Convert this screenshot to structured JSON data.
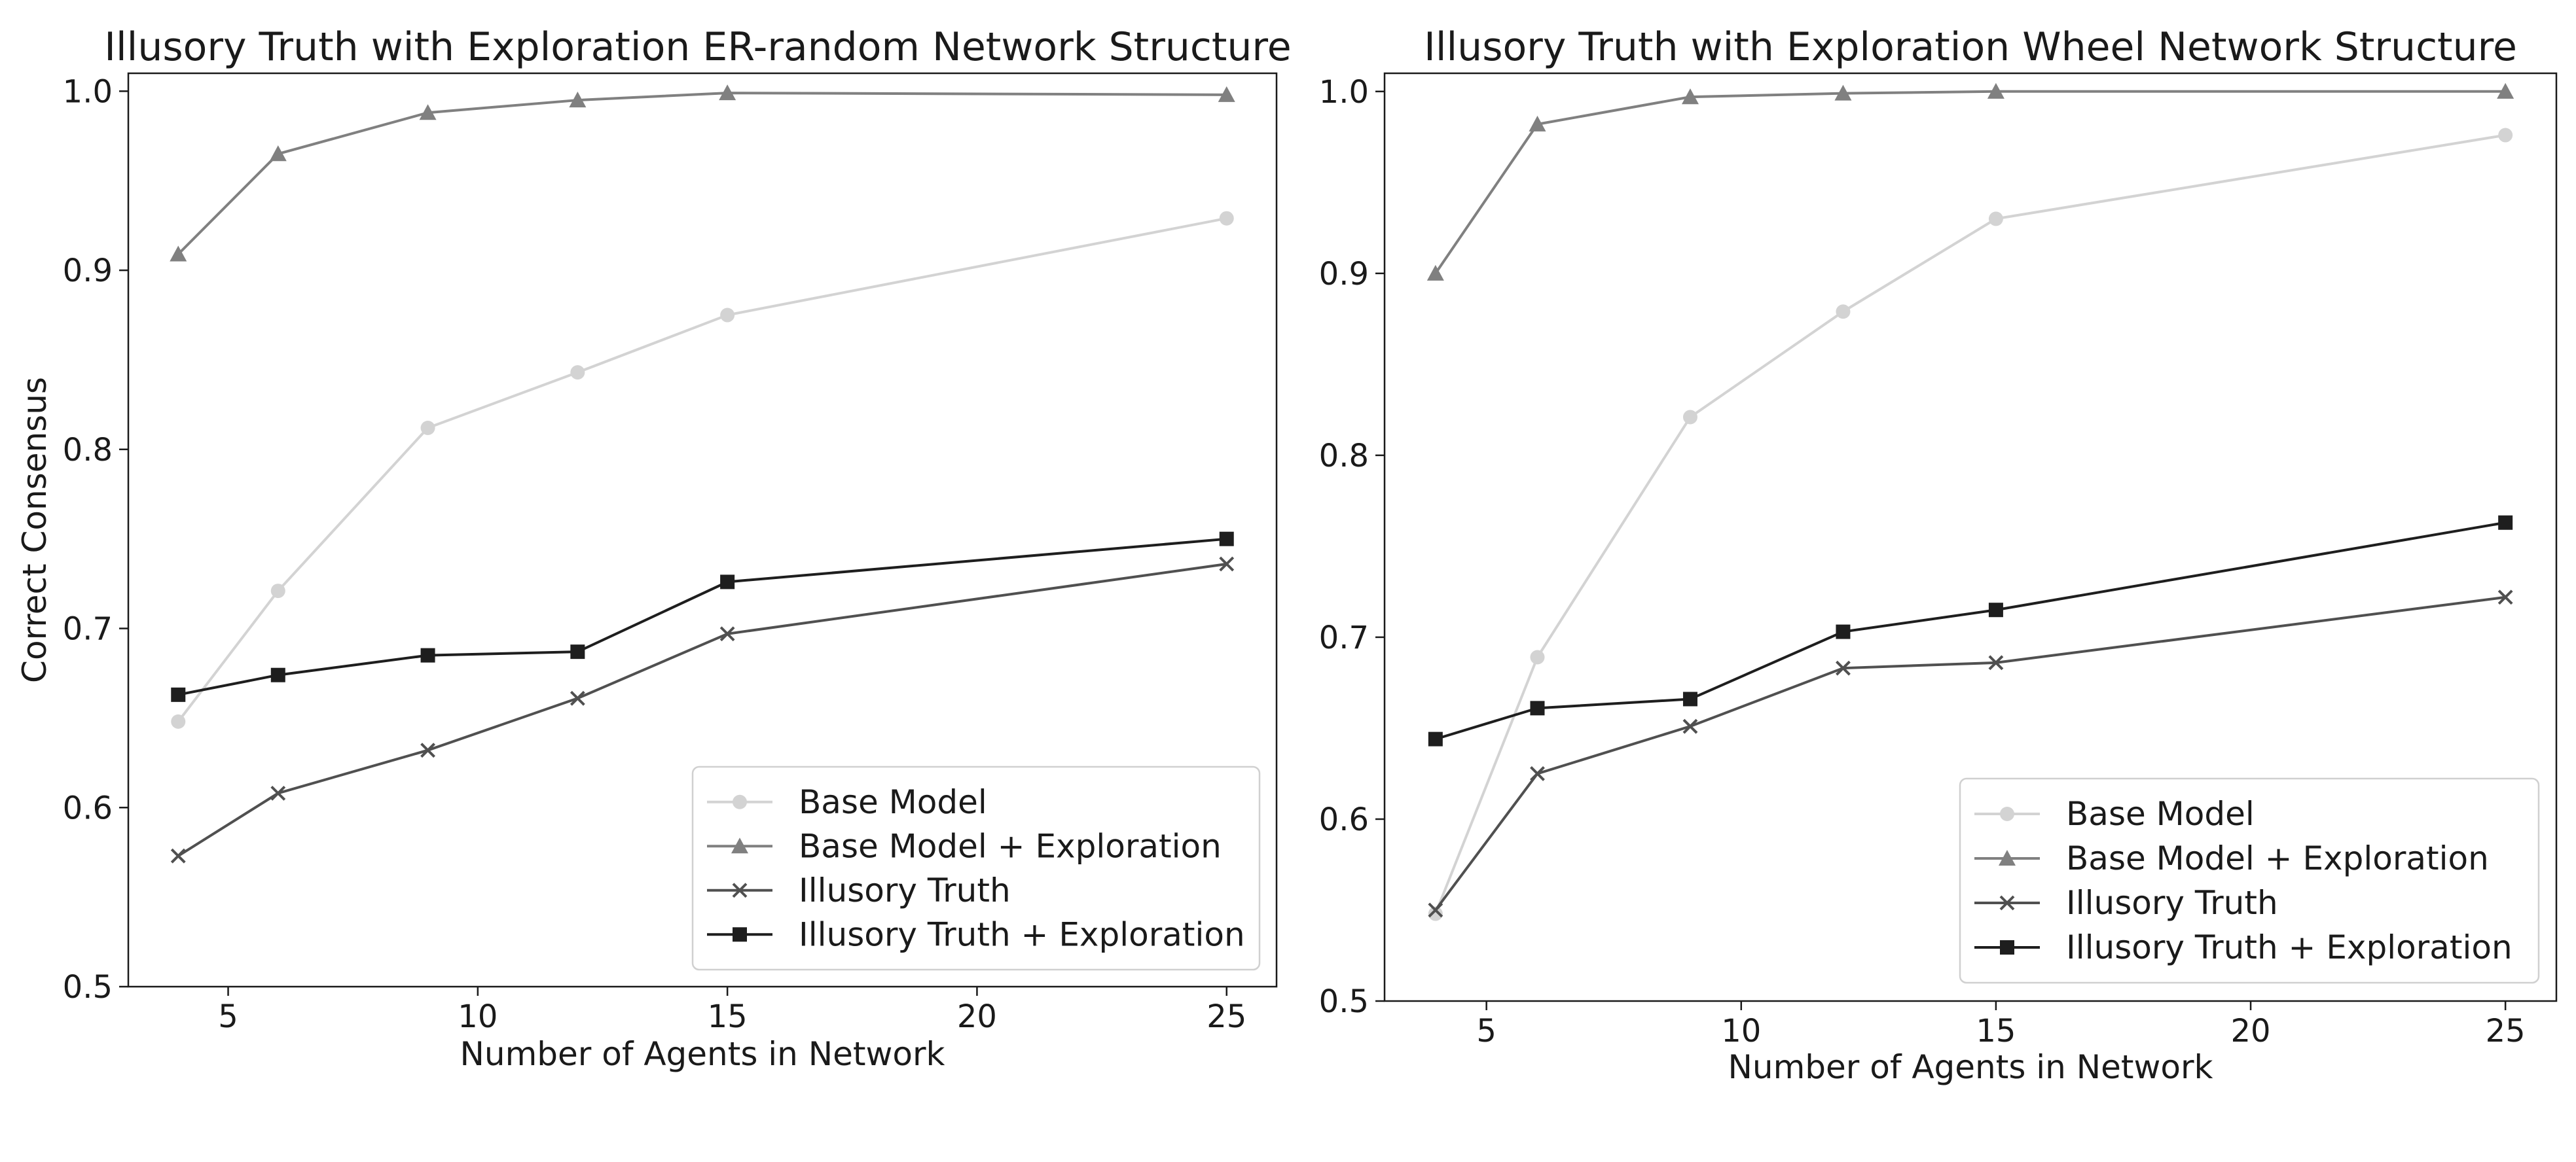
{
  "chart_data": [
    {
      "type": "line",
      "title": "Illusory Truth with Exploration ER-random Network Structure",
      "xlabel": "Number of Agents in Network",
      "ylabel": "Correct Consensus",
      "xlim": [
        3,
        26
      ],
      "ylim": [
        0.5,
        1.01
      ],
      "xticks": [
        5,
        10,
        15,
        20,
        25
      ],
      "yticks": [
        0.5,
        0.6,
        0.7,
        0.8,
        0.9,
        1.0
      ],
      "x": [
        4,
        6,
        9,
        12,
        15,
        25
      ],
      "legend_position": "lower-right",
      "grid": false,
      "series": [
        {
          "name": "Base Model",
          "marker": "circle",
          "color": "#d3d3d3",
          "values": [
            0.648,
            0.721,
            0.812,
            0.843,
            0.875,
            0.929
          ]
        },
        {
          "name": "Base Model + Exploration",
          "marker": "triangle",
          "color": "#808080",
          "values": [
            0.909,
            0.965,
            0.988,
            0.995,
            0.999,
            0.998
          ]
        },
        {
          "name": "Illusory Truth",
          "marker": "x",
          "color": "#505050",
          "values": [
            0.573,
            0.608,
            0.632,
            0.661,
            0.697,
            0.736
          ]
        },
        {
          "name": "Illusory Truth + Exploration",
          "marker": "square",
          "color": "#1e1e1e",
          "values": [
            0.663,
            0.674,
            0.685,
            0.687,
            0.726,
            0.75
          ]
        }
      ]
    },
    {
      "type": "line",
      "title": "Illusory Truth with Exploration Wheel Network Structure",
      "xlabel": "Number of Agents in Network",
      "ylabel": "",
      "xlim": [
        3,
        26
      ],
      "ylim": [
        0.5,
        1.01
      ],
      "xticks": [
        5,
        10,
        15,
        20,
        25
      ],
      "yticks": [
        0.5,
        0.6,
        0.7,
        0.8,
        0.9,
        1.0
      ],
      "x": [
        4,
        6,
        9,
        12,
        15,
        25
      ],
      "legend_position": "lower-right",
      "grid": false,
      "series": [
        {
          "name": "Base Model",
          "marker": "circle",
          "color": "#d3d3d3",
          "values": [
            0.548,
            0.689,
            0.821,
            0.879,
            0.93,
            0.976
          ]
        },
        {
          "name": "Base Model + Exploration",
          "marker": "triangle",
          "color": "#808080",
          "values": [
            0.9,
            0.982,
            0.997,
            0.999,
            1.0,
            1.0
          ]
        },
        {
          "name": "Illusory Truth",
          "marker": "x",
          "color": "#505050",
          "values": [
            0.55,
            0.625,
            0.651,
            0.683,
            0.686,
            0.722
          ]
        },
        {
          "name": "Illusory Truth + Exploration",
          "marker": "square",
          "color": "#1e1e1e",
          "values": [
            0.644,
            0.661,
            0.666,
            0.703,
            0.715,
            0.763
          ]
        }
      ]
    }
  ]
}
